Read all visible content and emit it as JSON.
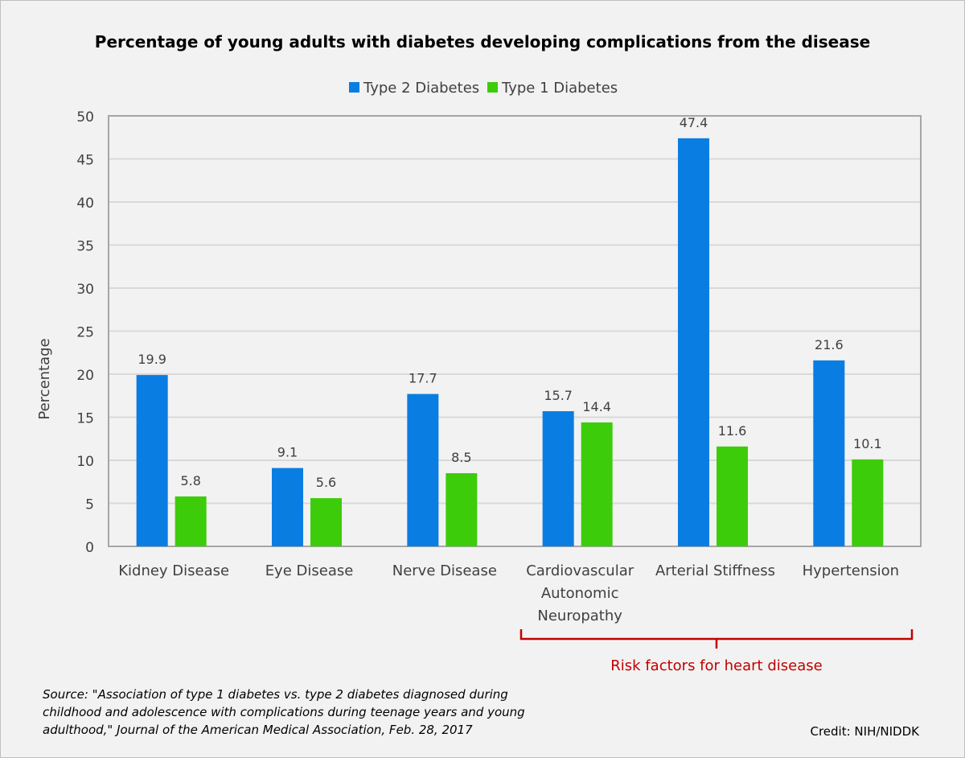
{
  "chart_data": {
    "type": "bar",
    "title": "Percentage of young adults with diabetes developing complications from the disease",
    "ylabel": "Percentage",
    "xlabel": "",
    "ylim": [
      0,
      50
    ],
    "yticks": [
      0,
      5,
      10,
      15,
      20,
      25,
      30,
      35,
      40,
      45,
      50
    ],
    "grid": true,
    "legend": "top",
    "categories": [
      [
        "Kidney Disease"
      ],
      [
        "Eye Disease"
      ],
      [
        "Nerve Disease"
      ],
      [
        "Cardiovascular",
        "Autonomic",
        "Neuropathy"
      ],
      [
        "Arterial Stiffness"
      ],
      [
        "Hypertension"
      ]
    ],
    "series": [
      {
        "name": "Type 2 Diabetes",
        "color": "#0a7de3",
        "values": [
          19.9,
          9.1,
          17.7,
          15.7,
          47.4,
          21.6
        ]
      },
      {
        "name": "Type 1 Diabetes",
        "color": "#3dcc0a",
        "values": [
          5.8,
          5.6,
          8.5,
          14.4,
          11.6,
          10.1
        ]
      }
    ],
    "annotation": {
      "text": "Risk factors for heart disease",
      "color": "#c00000",
      "spans_categories": [
        "Cardiovascular Autonomic Neuropathy",
        "Hypertension"
      ]
    }
  },
  "source": {
    "lines": [
      "Source: \"Association of type 1 diabetes vs. type 2 diabetes diagnosed during",
      "childhood and adolescence with complications during teenage years and young",
      "adulthood,\" Journal of the American Medical Association, Feb. 28, 2017"
    ]
  },
  "credit": "Credit: NIH/NIDDK"
}
